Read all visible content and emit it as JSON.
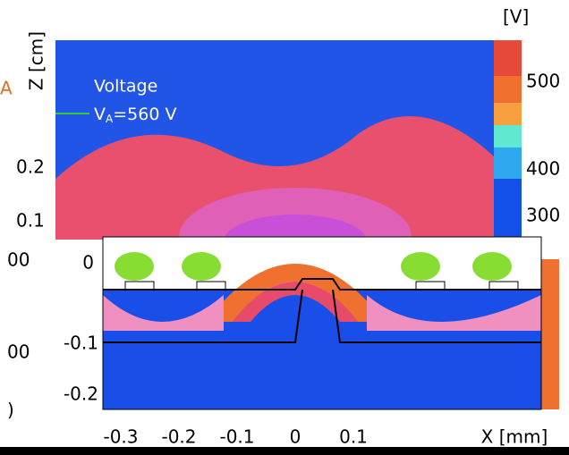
{
  "upper_panel": {
    "z_axis_label": "Z [cm]",
    "z_ticks": [
      "0.2",
      "0.1"
    ],
    "cropped_label": "A",
    "annotation": {
      "title": "Voltage",
      "anode": "V",
      "anode_sub": "A",
      "anode_value": "=560 V"
    },
    "colorbar": {
      "unit": "[V]",
      "ticks": [
        "500",
        "400",
        "300"
      ]
    }
  },
  "lower_panel": {
    "cropped_left_labels": [
      "00",
      "00",
      ")"
    ],
    "y_ticks": [
      "0",
      "-0.1",
      "-0.2"
    ],
    "x_ticks": [
      "-0.3",
      "-0.2",
      "-0.1",
      "0",
      "0.1"
    ],
    "x_axis_label": "X [mm]"
  }
}
